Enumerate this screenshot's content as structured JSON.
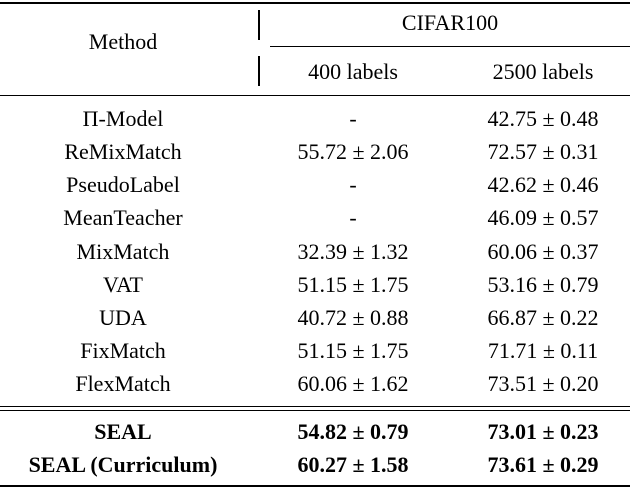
{
  "header": {
    "method_label": "Method",
    "dataset_label": "CIFAR100",
    "columns": [
      "400 labels",
      "2500 labels"
    ]
  },
  "rows": [
    {
      "method": "Π-Model",
      "c400": "-",
      "c2500": "42.75 ± 0.48"
    },
    {
      "method": "ReMixMatch",
      "c400": "55.72 ± 2.06",
      "c2500": "72.57 ± 0.31"
    },
    {
      "method": "PseudoLabel",
      "c400": "-",
      "c2500": "42.62 ± 0.46"
    },
    {
      "method": "MeanTeacher",
      "c400": "-",
      "c2500": "46.09 ± 0.57"
    },
    {
      "method": "MixMatch",
      "c400": "32.39 ± 1.32",
      "c2500": "60.06 ± 0.37"
    },
    {
      "method": "VAT",
      "c400": "51.15 ± 1.75",
      "c2500": "53.16 ± 0.79"
    },
    {
      "method": "UDA",
      "c400": "40.72 ± 0.88",
      "c2500": "66.87 ± 0.22"
    },
    {
      "method": "FixMatch",
      "c400": "51.15 ± 1.75",
      "c2500": "71.71 ± 0.11"
    },
    {
      "method": "FlexMatch",
      "c400": "60.06 ± 1.62",
      "c2500": "73.51 ± 0.20"
    }
  ],
  "ours": [
    {
      "method": "SEAL",
      "c400": "54.82 ± 0.79",
      "c2500": "73.01 ± 0.23"
    },
    {
      "method": "SEAL (Curriculum)",
      "c400": "60.27 ± 1.58",
      "c2500": "73.61 ± 0.29"
    }
  ]
}
